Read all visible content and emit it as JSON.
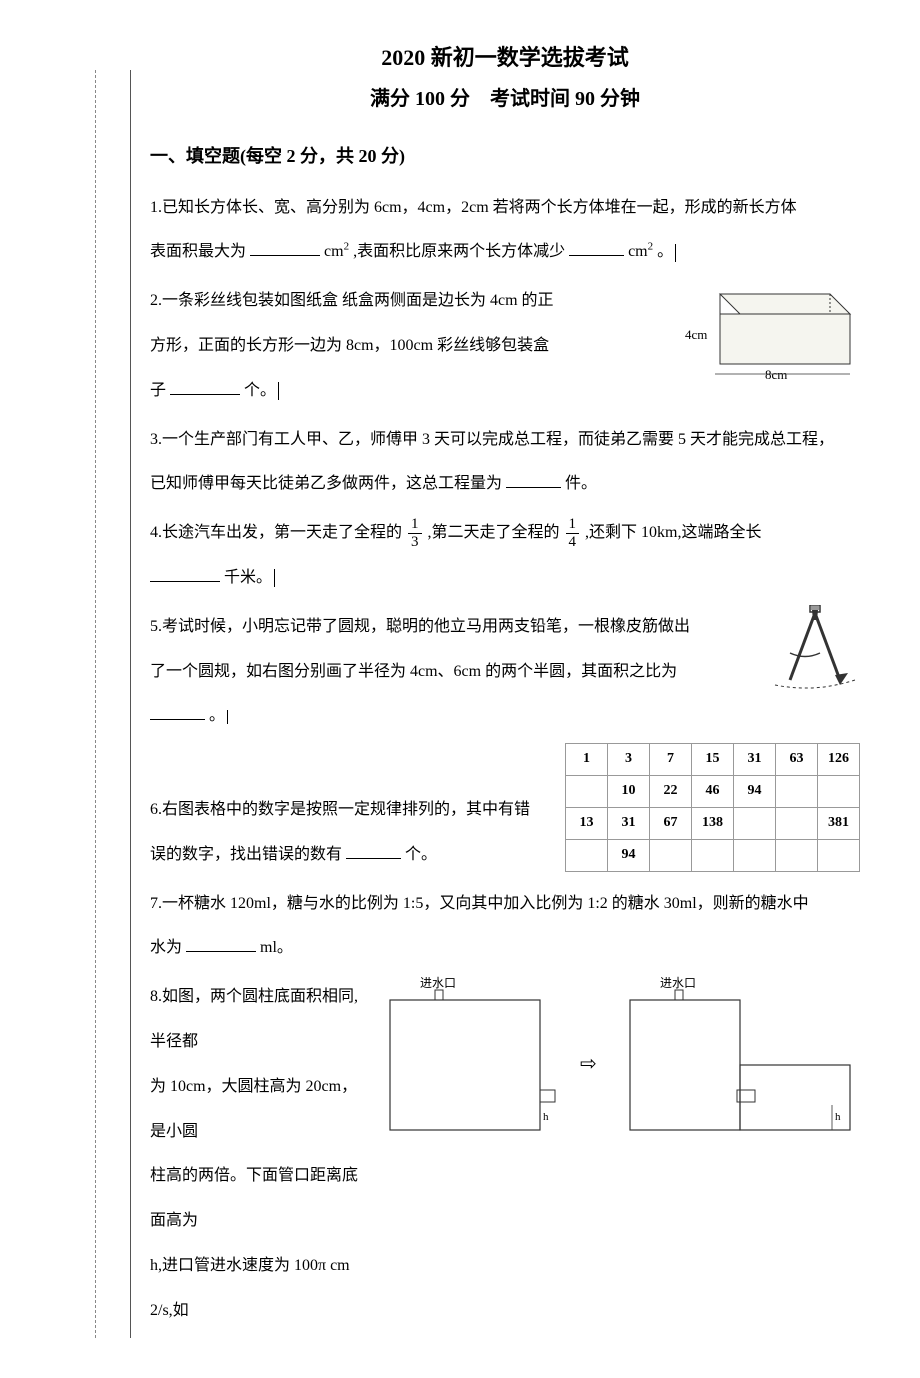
{
  "title": "2020 新初一数学选拔考试",
  "subtitle": "满分 100 分　考试时间 90 分钟",
  "section1_header": "一、填空题(每空 2 分，共 20 分)",
  "q1": {
    "text_a": "1.已知长方体长、宽、高分别为 6cm，4cm，2cm 若将两个长方体堆在一起，形成的新长方体",
    "text_b": "表面积最大为",
    "unit1": "cm",
    "text_c": ",表面积比原来两个长方体减少",
    "unit2": "cm",
    "text_d": "。"
  },
  "q2": {
    "text_a": "2.一条彩丝线包装如图纸盒 纸盒两侧面是边长为 4cm 的正",
    "text_b": "方形，正面的长方形一边为 8cm，100cm 彩丝线够包装盒",
    "text_c": "子",
    "text_d": "个。",
    "fig": {
      "label_h": "4cm",
      "label_w": "8cm",
      "box_color": "#f5f5ef"
    }
  },
  "q3": {
    "text_a": "3.一个生产部门有工人甲、乙，师傅甲 3 天可以完成总工程，而徒弟乙需要 5 天才能完成总工程，",
    "text_b": "已知师傅甲每天比徒弟乙多做两件，这总工程量为",
    "text_c": "件。"
  },
  "q4": {
    "text_a": "4.长途汽车出发，第一天走了全程的",
    "frac1_num": "1",
    "frac1_den": "3",
    "text_b": ",第二天走了全程的",
    "frac2_num": "1",
    "frac2_den": "4",
    "text_c": ",还剩下 10km,这端路全长",
    "text_d": "千米。"
  },
  "q5": {
    "text_a": "5.考试时候，小明忘记带了圆规，聪明的他立马用两支铅笔，一根橡皮筋做出",
    "text_b": "了一个圆规，如右图分别画了半径为 4cm、6cm 的两个半圆，其面积之比为",
    "text_c": "。"
  },
  "q6": {
    "text_a": "6.右图表格中的数字是按照一定规律排列的，其中有错",
    "text_b": "误的数字，找出错误的数有",
    "text_c": "个。",
    "table": [
      [
        "1",
        "3",
        "7",
        "15",
        "31",
        "63",
        "126"
      ],
      [
        "",
        "10",
        "22",
        "46",
        "94",
        "",
        ""
      ],
      [
        "13",
        "31",
        "67",
        "138",
        "",
        "",
        "381"
      ],
      [
        "",
        "94",
        "",
        "",
        "",
        "",
        ""
      ]
    ]
  },
  "q7": {
    "text_a": "7.一杯糖水 120ml，糖与水的比例为 1:5，又向其中加入比例为 1:2 的糖水 30ml，则新的糖水中",
    "text_b": "水为",
    "text_c": "ml。"
  },
  "q8": {
    "text_a": "8.如图，两个圆柱底面积相同,半径都",
    "text_b": "为 10cm，大圆柱高为 20cm，是小圆",
    "text_c": "柱高的两倍。下面管口距离底面高为",
    "text_d": "h,进口管进水速度为 100π cm 2/s,如",
    "fig": {
      "label_inlet": "进水口",
      "label_h": "h",
      "arrow": "⇨"
    }
  }
}
